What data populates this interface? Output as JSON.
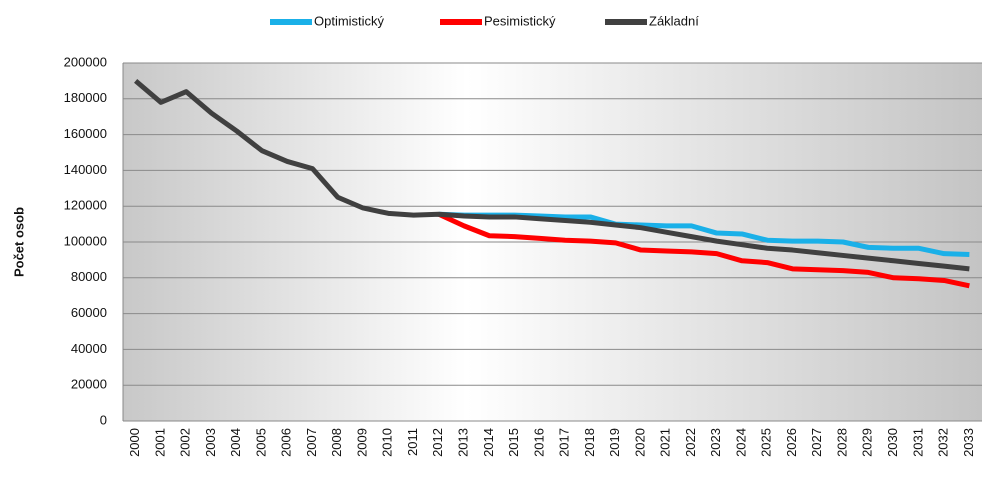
{
  "chart_data": {
    "type": "line",
    "categories": [
      "2000",
      "2001",
      "2002",
      "2003",
      "2004",
      "2005",
      "2006",
      "2007",
      "2008",
      "2009",
      "2010",
      "2011",
      "2012",
      "2013",
      "2014",
      "2015",
      "2016",
      "2017",
      "2018",
      "2019",
      "2020",
      "2021",
      "2022",
      "2023",
      "2024",
      "2025",
      "2026",
      "2027",
      "2028",
      "2029",
      "2030",
      "2031",
      "2032",
      "2033"
    ],
    "series": [
      {
        "name": "Optimistický",
        "color": "#1ab0e8",
        "values": [
          null,
          null,
          null,
          null,
          null,
          null,
          null,
          null,
          null,
          null,
          null,
          null,
          115500,
          115000,
          115000,
          115000,
          114500,
          114000,
          114000,
          110000,
          109500,
          109000,
          109000,
          105000,
          104500,
          101000,
          100500,
          100500,
          100000,
          97000,
          96500,
          96500,
          93500,
          93000
        ]
      },
      {
        "name": "Pesimistický",
        "color": "#ff0000",
        "values": [
          null,
          null,
          null,
          null,
          null,
          null,
          null,
          null,
          null,
          null,
          null,
          null,
          115500,
          109000,
          103500,
          103000,
          102000,
          101000,
          100500,
          99500,
          95500,
          95000,
          94500,
          93500,
          89500,
          88500,
          85000,
          84500,
          84000,
          83000,
          80000,
          79500,
          78500,
          75500
        ]
      },
      {
        "name": "Základní",
        "color": "#404040",
        "values": [
          190000,
          178000,
          184000,
          172000,
          162000,
          151000,
          145000,
          141000,
          125000,
          119000,
          116000,
          115000,
          115500,
          114500,
          114000,
          114000,
          113000,
          112000,
          111000,
          109500,
          108000,
          105500,
          103000,
          100500,
          98500,
          96500,
          95500,
          94000,
          92500,
          91000,
          89500,
          88000,
          86500,
          85000
        ]
      }
    ],
    "y_label": "Počet osob",
    "ylim": [
      0,
      200000
    ],
    "yticks": [
      0,
      20000,
      40000,
      60000,
      80000,
      100000,
      120000,
      140000,
      160000,
      180000,
      200000
    ],
    "grid": true,
    "legend": "top"
  }
}
